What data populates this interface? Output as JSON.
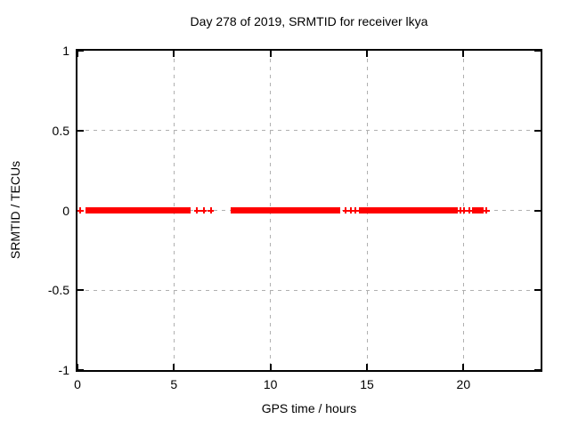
{
  "figure": {
    "background": "#ffffff",
    "text_color": "#000000"
  },
  "chart_data": {
    "type": "scatter",
    "title": "Day 278 of 2019, SRMTID for receiver lkya",
    "xlabel": "GPS time / hours",
    "ylabel": "SRMTID / TECUs",
    "xlim": [
      0,
      24
    ],
    "ylim": [
      -1,
      1
    ],
    "xticks": [
      {
        "v": 0,
        "label": "0"
      },
      {
        "v": 5,
        "label": "5"
      },
      {
        "v": 10,
        "label": "10"
      },
      {
        "v": 15,
        "label": "15"
      },
      {
        "v": 20,
        "label": "20"
      }
    ],
    "yticks": [
      {
        "v": 1,
        "label": "1"
      },
      {
        "v": 0.5,
        "label": "0.5"
      },
      {
        "v": 0,
        "label": "0"
      },
      {
        "v": -0.5,
        "label": "-0.5"
      },
      {
        "v": -1,
        "label": "-1"
      }
    ],
    "grid": true,
    "grid_style": "dashed",
    "grid_color": "#b0b0b0",
    "border_color": "#000000",
    "legend": "none",
    "series": [
      {
        "name": "SRMTID",
        "color": "#ff0000",
        "marker": "plus",
        "y": 0,
        "bands": [
          [
            0.4,
            5.85
          ],
          [
            7.95,
            13.6
          ],
          [
            14.6,
            19.7
          ],
          [
            20.45,
            21.05
          ]
        ],
        "points": [
          0.15,
          6.2,
          6.55,
          6.9,
          13.9,
          14.15,
          14.4,
          19.85,
          20.05,
          20.3,
          21.2
        ]
      }
    ]
  }
}
